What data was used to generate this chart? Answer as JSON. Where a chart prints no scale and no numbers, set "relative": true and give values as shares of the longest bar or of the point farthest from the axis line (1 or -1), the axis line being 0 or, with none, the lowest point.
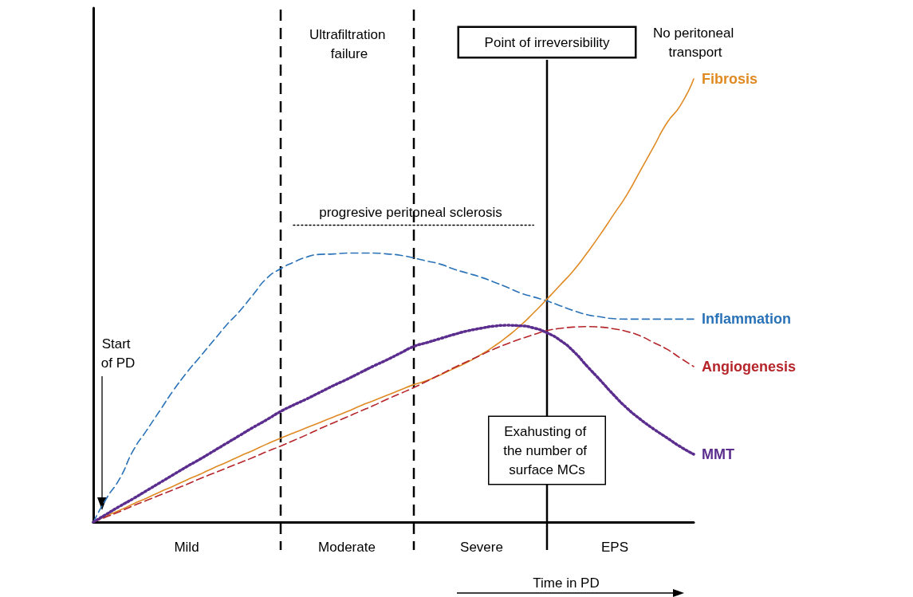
{
  "chart_data": {
    "type": "line",
    "relative": true,
    "xlabel": "Time in PD",
    "marker": "none",
    "grid": false,
    "legend": false,
    "categories": [
      null,
      null,
      null,
      null,
      null,
      null,
      null,
      null,
      null,
      null,
      null,
      null,
      null,
      null,
      null,
      null,
      null,
      null,
      null,
      null,
      null,
      null,
      null,
      null,
      null,
      null,
      null,
      null,
      null,
      null,
      null,
      null,
      null,
      null,
      null,
      null,
      null,
      null,
      null,
      null,
      null,
      null,
      null,
      null,
      null,
      null
    ],
    "series": [
      {
        "name": "Inflammation",
        "color": "#2a72b8",
        "line_style": "dashed",
        "values": [
          0,
          0.054,
          0.099,
          0.162,
          0.207,
          0.252,
          0.297,
          0.337,
          0.373,
          0.409,
          0.445,
          0.477,
          0.514,
          0.55,
          0.571,
          0.586,
          0.598,
          0.604,
          0.605,
          0.607,
          0.607,
          0.607,
          0.605,
          0.602,
          0.596,
          0.589,
          0.582,
          0.571,
          0.562,
          0.553,
          0.542,
          0.53,
          0.517,
          0.508,
          0.499,
          0.488,
          0.477,
          0.468,
          0.463,
          0.459,
          0.458,
          0.458,
          0.458,
          0.458,
          0.458,
          0.458
        ]
      },
      {
        "name": "Fibrosis",
        "color": "#e08a24",
        "line_style": "solid",
        "values": [
          0,
          0.014,
          0.027,
          0.041,
          0.054,
          0.068,
          0.081,
          0.095,
          0.108,
          0.122,
          0.135,
          0.149,
          0.162,
          0.176,
          0.189,
          0.201,
          0.213,
          0.225,
          0.237,
          0.249,
          0.262,
          0.274,
          0.286,
          0.298,
          0.31,
          0.319,
          0.332,
          0.346,
          0.36,
          0.377,
          0.396,
          0.418,
          0.443,
          0.472,
          0.503,
          0.535,
          0.568,
          0.607,
          0.649,
          0.694,
          0.739,
          0.793,
          0.847,
          0.901,
          0.94,
          1
        ]
      },
      {
        "name": "Angiogenesis",
        "color": "#b5252a",
        "line_style": "dashed",
        "values": [
          0,
          0.012,
          0.024,
          0.037,
          0.049,
          0.061,
          0.073,
          0.085,
          0.098,
          0.11,
          0.122,
          0.134,
          0.146,
          0.159,
          0.171,
          0.184,
          0.197,
          0.211,
          0.224,
          0.237,
          0.25,
          0.263,
          0.277,
          0.29,
          0.303,
          0.318,
          0.333,
          0.348,
          0.362,
          0.376,
          0.39,
          0.402,
          0.413,
          0.423,
          0.432,
          0.437,
          0.44,
          0.441,
          0.44,
          0.436,
          0.43,
          0.42,
          0.405,
          0.39,
          0.37,
          0.351
        ]
      },
      {
        "name": "MMT",
        "color": "#5b2d8e",
        "line_style": "dotted",
        "values": [
          0,
          0.018,
          0.036,
          0.053,
          0.071,
          0.089,
          0.107,
          0.125,
          0.142,
          0.16,
          0.178,
          0.196,
          0.214,
          0.231,
          0.249,
          0.264,
          0.278,
          0.293,
          0.308,
          0.322,
          0.337,
          0.352,
          0.366,
          0.381,
          0.396,
          0.405,
          0.414,
          0.423,
          0.431,
          0.437,
          0.442,
          0.444,
          0.443,
          0.438,
          0.427,
          0.41,
          0.385,
          0.352,
          0.32,
          0.287,
          0.257,
          0.232,
          0.21,
          0.19,
          0.17,
          0.153
        ]
      },
      {
        "color": "#000000",
        "line_style": "dotted",
        "values": [
          null,
          null,
          null,
          null,
          null,
          null,
          null,
          null,
          null,
          null,
          null,
          null,
          null,
          null,
          null,
          0.67,
          0.67,
          0.67,
          0.67,
          0.67,
          0.67,
          0.67,
          0.67,
          0.67,
          0.67,
          0.67,
          0.67,
          0.67,
          0.67,
          0.67,
          0.67,
          0.67,
          0.67,
          0.67,
          null,
          null,
          null,
          null,
          null,
          null,
          null,
          null,
          null,
          null,
          null,
          null
        ]
      }
    ],
    "annotations": [
      "Ultrafiltration failure",
      "No peritoneal transport",
      "progresive peritoneal sclerosis",
      "Start of PD",
      "Exahusting of the number of surface MCs",
      "Point of irreversibility",
      "Mild",
      "Moderate",
      "Severe",
      "EPS"
    ]
  }
}
